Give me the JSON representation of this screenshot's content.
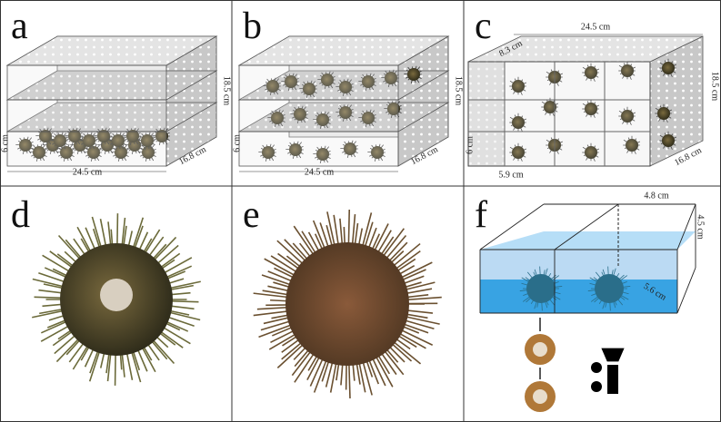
{
  "panels": [
    {
      "label": "a",
      "dimensions": [
        "18.5 cm",
        "6 cm",
        "24.5 cm",
        "16.8 cm"
      ]
    },
    {
      "label": "b",
      "dimensions": [
        "18.5 cm",
        "6 cm",
        "24.5 cm",
        "16.8 cm"
      ]
    },
    {
      "label": "c",
      "dimensions": [
        "24.5 cm",
        "8.3 cm",
        "18.5 cm",
        "6 cm",
        "5.9 cm",
        "16.8 cm"
      ]
    },
    {
      "label": "d"
    },
    {
      "label": "e"
    },
    {
      "label": "f",
      "dimensions": [
        "4.8 cm",
        "4.5 cm",
        "5.6 cm"
      ]
    }
  ]
}
